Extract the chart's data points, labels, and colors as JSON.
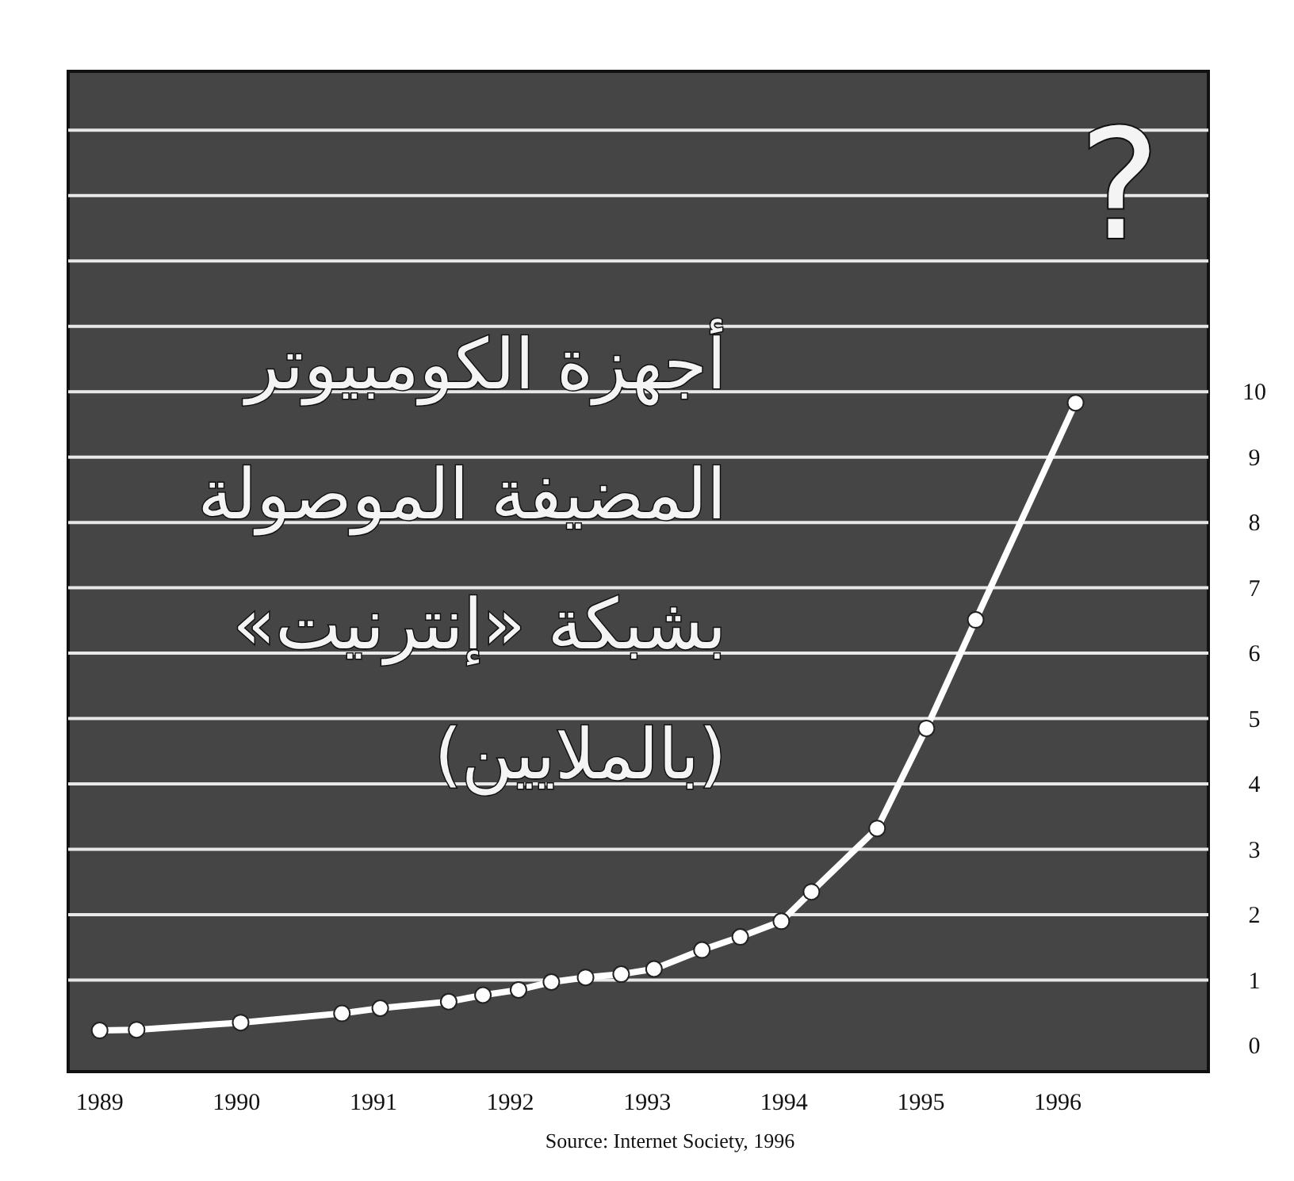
{
  "chart_data": {
    "type": "line",
    "title": "أجهزة الكومبيوتر\nالمضيفة الموصولة\nبشبكة «إنترنيت»\n(بالملايين)",
    "annotations": [
      "?",
      "Source: Internet Society, 1996"
    ],
    "series": [
      {
        "color": "#ffffff",
        "x": [
          1989.0,
          1989.27,
          1990.03,
          1990.77,
          1991.05,
          1991.55,
          1991.8,
          1992.06,
          1992.3,
          1992.55,
          1992.81,
          1993.05,
          1993.4,
          1993.68,
          1993.98,
          1994.2,
          1994.68,
          1995.04,
          1995.4,
          1996.13
        ],
        "values": [
          0.23,
          0.24,
          0.35,
          0.49,
          0.57,
          0.67,
          0.77,
          0.85,
          0.97,
          1.04,
          1.09,
          1.17,
          1.46,
          1.66,
          1.9,
          2.35,
          3.32,
          4.85,
          6.51,
          9.83
        ]
      }
    ],
    "xlim": [
      1988.77,
      1997.1
    ],
    "ylim": [
      -0.4,
      14.9
    ],
    "xticks": [
      1989,
      1990,
      1991,
      1992,
      1993,
      1994,
      1995,
      1996
    ],
    "yticks": [
      0,
      1,
      2,
      3,
      4,
      5,
      6,
      7,
      8,
      9,
      10,
      {
        "value": 11,
        "label": null
      },
      {
        "value": 12,
        "label": null
      },
      {
        "value": 13,
        "label": null
      },
      {
        "value": 14,
        "label": null
      }
    ],
    "grid": "y",
    "marker": "circle",
    "line_style": "solid",
    "tick_labels": "xy"
  }
}
